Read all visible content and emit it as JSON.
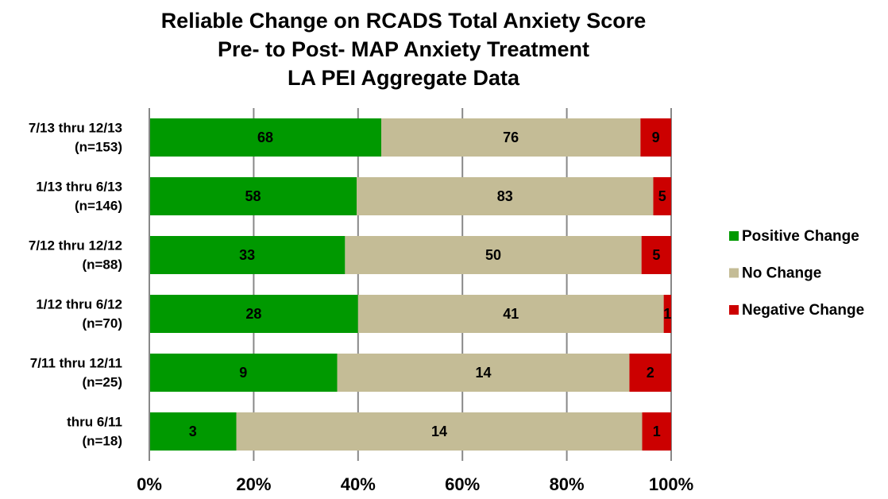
{
  "chart_data": {
    "type": "bar",
    "orientation": "horizontal",
    "stacked": "percent",
    "title": [
      "Reliable Change on RCADS Total Anxiety Score",
      "Pre- to Post- MAP Anxiety Treatment",
      "LA PEI Aggregate Data"
    ],
    "categories": [
      [
        "7/13 thru 12/13",
        "(n=153)"
      ],
      [
        "1/13 thru 6/13",
        "(n=146)"
      ],
      [
        "7/12 thru 12/12",
        "(n=88)"
      ],
      [
        "1/12 thru 6/12",
        "(n=70)"
      ],
      [
        "7/11 thru 12/11",
        "(n=25)"
      ],
      [
        "thru 6/11",
        "(n=18)"
      ]
    ],
    "series": [
      {
        "name": "Positive Change",
        "color": "#009900",
        "values": [
          68,
          58,
          33,
          28,
          9,
          3
        ]
      },
      {
        "name": "No Change",
        "color": "#c4bc96",
        "values": [
          76,
          83,
          50,
          41,
          14,
          14
        ]
      },
      {
        "name": "Negative Change",
        "color": "#cc0000",
        "values": [
          9,
          5,
          5,
          1,
          2,
          1
        ]
      }
    ],
    "xlim": [
      0,
      100
    ],
    "xticks": [
      {
        "value": 0,
        "label": "0%"
      },
      {
        "value": 20,
        "label": "20%"
      },
      {
        "value": 40,
        "label": "40%"
      },
      {
        "value": 60,
        "label": "60%"
      },
      {
        "value": 80,
        "label": "80%"
      },
      {
        "value": 100,
        "label": "100%"
      }
    ],
    "grid": true,
    "legend": "right"
  }
}
